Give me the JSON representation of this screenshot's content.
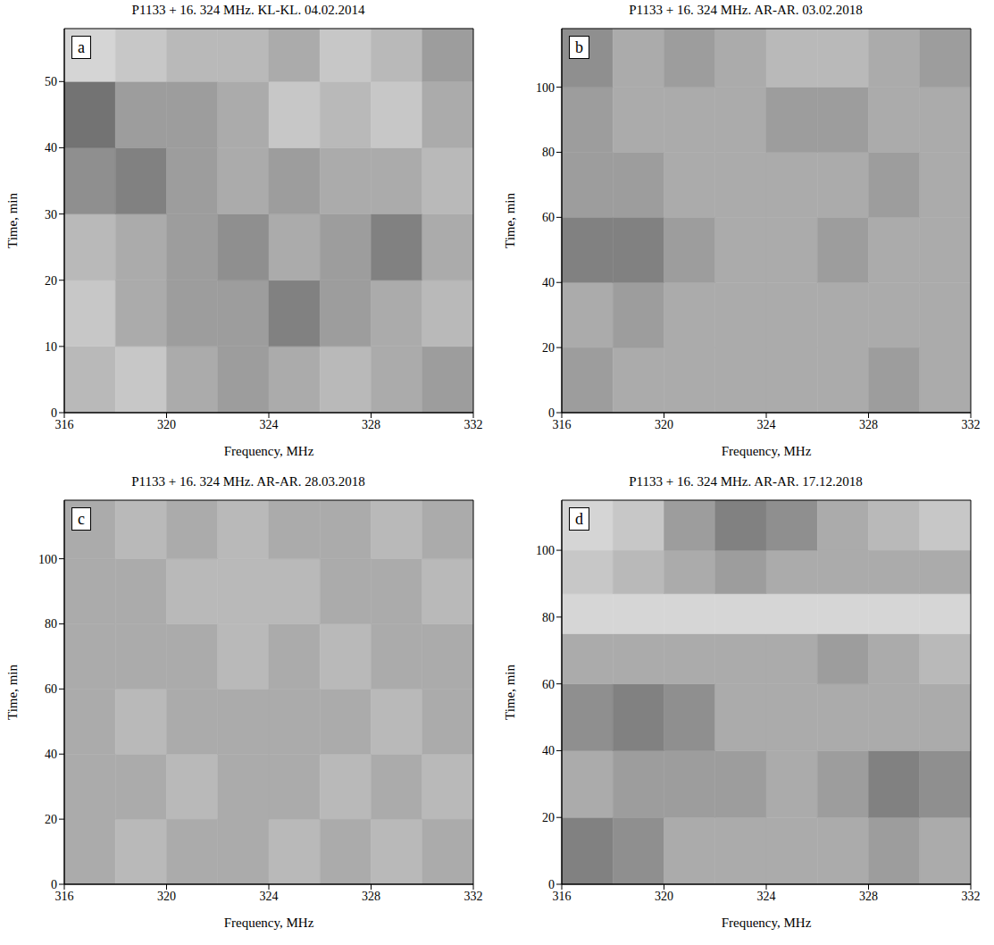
{
  "chart_data": [
    {
      "type": "heatmap",
      "title": "P1133 + 16. 324 MHz. KL-KL. 04.02.2014",
      "panel": "a",
      "x_label": "Frequency, MHz",
      "y_label": "Time, min",
      "xlim": [
        316,
        332
      ],
      "xticks": [
        316,
        320,
        324,
        328,
        332
      ],
      "ylim": [
        0,
        58
      ],
      "yticks": [
        0,
        10,
        20,
        30,
        40,
        50
      ],
      "x_edges": [
        316,
        318,
        320,
        322,
        324,
        326,
        328,
        330,
        332
      ],
      "y_edges": [
        0,
        10,
        20,
        30,
        40,
        50,
        58
      ],
      "cells": [
        [
          0.25,
          0.2,
          0.3,
          0.35,
          0.3,
          0.25,
          0.3,
          0.35
        ],
        [
          0.2,
          0.3,
          0.35,
          0.35,
          0.45,
          0.35,
          0.3,
          0.25
        ],
        [
          0.25,
          0.3,
          0.35,
          0.4,
          0.3,
          0.35,
          0.45,
          0.3
        ],
        [
          0.4,
          0.45,
          0.35,
          0.3,
          0.35,
          0.3,
          0.3,
          0.25
        ],
        [
          0.5,
          0.35,
          0.35,
          0.3,
          0.2,
          0.25,
          0.2,
          0.3
        ],
        [
          0.15,
          0.2,
          0.25,
          0.25,
          0.3,
          0.2,
          0.25,
          0.35
        ]
      ]
    },
    {
      "type": "heatmap",
      "title": "P1133 + 16. 324 MHz. AR-AR. 03.02.2018",
      "panel": "b",
      "x_label": "Frequency, MHz",
      "y_label": "Time, min",
      "xlim": [
        316,
        332
      ],
      "xticks": [
        316,
        320,
        324,
        328,
        332
      ],
      "ylim": [
        0,
        118
      ],
      "yticks": [
        0,
        20,
        40,
        60,
        80,
        100
      ],
      "x_edges": [
        316,
        318,
        320,
        322,
        324,
        326,
        328,
        330,
        332
      ],
      "y_edges": [
        0,
        20,
        40,
        60,
        80,
        100,
        118
      ],
      "cells": [
        [
          0.35,
          0.3,
          0.3,
          0.3,
          0.3,
          0.3,
          0.35,
          0.3
        ],
        [
          0.3,
          0.35,
          0.3,
          0.3,
          0.3,
          0.3,
          0.3,
          0.3
        ],
        [
          0.45,
          0.45,
          0.35,
          0.3,
          0.3,
          0.35,
          0.3,
          0.3
        ],
        [
          0.35,
          0.35,
          0.3,
          0.3,
          0.3,
          0.3,
          0.35,
          0.3
        ],
        [
          0.35,
          0.3,
          0.3,
          0.3,
          0.35,
          0.35,
          0.3,
          0.3
        ],
        [
          0.4,
          0.3,
          0.35,
          0.3,
          0.25,
          0.25,
          0.3,
          0.35
        ]
      ]
    },
    {
      "type": "heatmap",
      "title": "P1133 + 16. 324 MHz. AR-AR. 28.03.2018",
      "panel": "c",
      "x_label": "Frequency, MHz",
      "y_label": "Time, min",
      "xlim": [
        316,
        332
      ],
      "xticks": [
        316,
        320,
        324,
        328,
        332
      ],
      "ylim": [
        0,
        118
      ],
      "yticks": [
        0,
        20,
        40,
        60,
        80,
        100
      ],
      "x_edges": [
        316,
        318,
        320,
        322,
        324,
        326,
        328,
        330,
        332
      ],
      "y_edges": [
        0,
        20,
        40,
        60,
        80,
        100,
        118
      ],
      "cells": [
        [
          0.3,
          0.25,
          0.3,
          0.3,
          0.25,
          0.3,
          0.25,
          0.3
        ],
        [
          0.3,
          0.3,
          0.25,
          0.3,
          0.3,
          0.25,
          0.3,
          0.25
        ],
        [
          0.3,
          0.25,
          0.3,
          0.3,
          0.3,
          0.3,
          0.25,
          0.3
        ],
        [
          0.3,
          0.3,
          0.3,
          0.25,
          0.3,
          0.25,
          0.3,
          0.3
        ],
        [
          0.3,
          0.3,
          0.25,
          0.25,
          0.25,
          0.3,
          0.3,
          0.25
        ],
        [
          0.3,
          0.25,
          0.3,
          0.25,
          0.3,
          0.3,
          0.25,
          0.3
        ]
      ]
    },
    {
      "type": "heatmap",
      "title": "P1133 + 16. 324 MHz. AR-AR. 17.12.2018",
      "panel": "d",
      "x_label": "Frequency, MHz",
      "y_label": "Time, min",
      "xlim": [
        316,
        332
      ],
      "xticks": [
        316,
        320,
        324,
        328,
        332
      ],
      "ylim": [
        0,
        115
      ],
      "yticks": [
        0,
        20,
        40,
        60,
        80,
        100
      ],
      "x_edges": [
        316,
        318,
        320,
        322,
        324,
        326,
        328,
        330,
        332
      ],
      "y_edges": [
        0,
        20,
        40,
        60,
        75,
        87,
        100,
        115
      ],
      "cells": [
        [
          0.45,
          0.4,
          0.3,
          0.3,
          0.3,
          0.3,
          0.35,
          0.3
        ],
        [
          0.3,
          0.35,
          0.35,
          0.35,
          0.3,
          0.35,
          0.45,
          0.4
        ],
        [
          0.4,
          0.45,
          0.4,
          0.3,
          0.3,
          0.3,
          0.3,
          0.3
        ],
        [
          0.3,
          0.3,
          0.3,
          0.3,
          0.3,
          0.35,
          0.3,
          0.25
        ],
        [
          null,
          null,
          null,
          null,
          null,
          null,
          null,
          null
        ],
        [
          0.2,
          0.25,
          0.3,
          0.35,
          0.3,
          0.3,
          0.3,
          0.3
        ],
        [
          0.15,
          0.2,
          0.35,
          0.45,
          0.4,
          0.3,
          0.25,
          0.2
        ]
      ]
    }
  ]
}
